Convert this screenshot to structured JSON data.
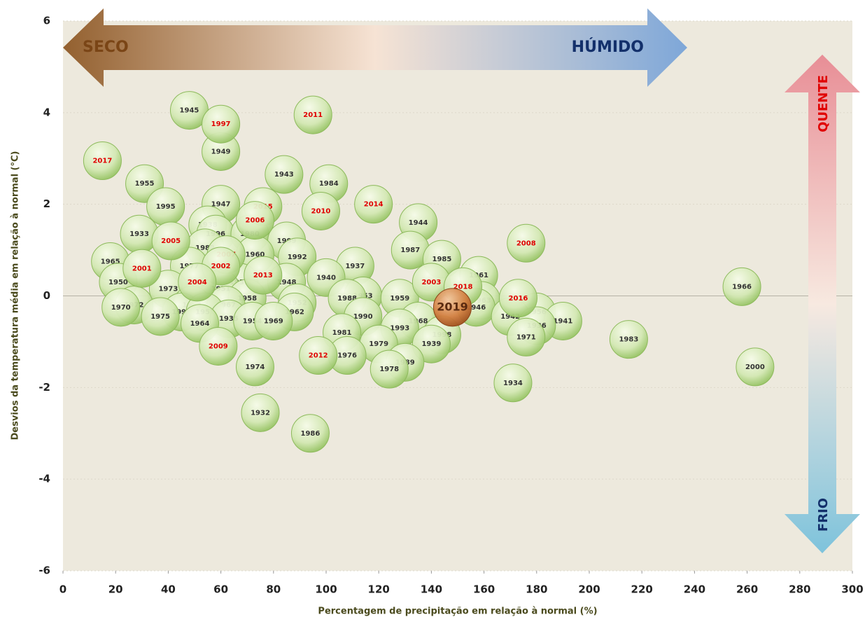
{
  "chart_data": {
    "type": "scatter",
    "x_label": "Percentagem de precipitação em relação à normal (%)",
    "y_label": "Desvios da temperatura média em relação à normal  (°C)",
    "annotations": [
      "SECO",
      "HÚMIDO",
      "QUENTE",
      "FRIO"
    ],
    "xlim": [
      0,
      300
    ],
    "xticks": [
      0,
      20,
      40,
      60,
      80,
      100,
      120,
      140,
      160,
      180,
      200,
      220,
      240,
      260,
      280,
      300
    ],
    "ylim": [
      -6,
      6
    ],
    "yticks": [
      -6,
      -4,
      -2,
      0,
      2,
      4,
      6
    ],
    "grid": true,
    "series": [
      {
        "color": "#b9d98f",
        "label_color": "#333333",
        "labels": [
          "1945",
          "1949",
          "1955",
          "1943",
          "1984",
          "1947",
          "1995",
          "1944",
          "1938",
          "1933",
          "1996",
          "1980",
          "1999",
          "1982",
          "1987",
          "1960",
          "1992",
          "1985",
          "1965",
          "1937",
          "1977",
          "1961",
          "1940",
          "1931",
          "1950",
          "1948",
          "1966",
          "1973",
          "1951",
          "1953",
          "1988",
          "1958",
          "1963",
          "1959",
          "1972",
          "1994",
          "1967",
          "1952",
          "1946",
          "1956",
          "1970",
          "1991",
          "1957",
          "1962",
          "1990",
          "1968",
          "1935",
          "1975",
          "1954",
          "1942",
          "1941",
          "1969",
          "1936",
          "1964",
          "1993",
          "1981",
          "1983",
          "1998",
          "1971",
          "1939",
          "1979",
          "1976",
          "1989",
          "1974",
          "2000",
          "1978",
          "1934",
          "1932",
          "1986"
        ],
        "x": [
          48,
          60,
          31,
          84,
          101,
          60,
          39,
          135,
          55,
          29,
          58,
          71,
          85,
          54,
          132,
          73,
          89,
          144,
          18,
          111,
          48,
          158,
          100,
          67,
          21,
          85,
          258,
          40,
          60,
          114,
          108,
          70,
          159,
          128,
          27,
          49,
          62,
          89,
          157,
          180,
          22,
          45,
          54,
          88,
          114,
          135,
          63,
          37,
          72,
          170,
          190,
          80,
          180,
          52,
          128,
          106,
          215,
          144,
          176,
          140,
          120,
          108,
          130,
          73,
          263,
          124,
          171,
          75,
          94
        ],
        "values": [
          4.05,
          3.15,
          2.45,
          2.65,
          2.45,
          2.0,
          1.95,
          1.6,
          1.55,
          1.35,
          1.35,
          1.35,
          1.2,
          1.05,
          1.0,
          0.9,
          0.85,
          0.8,
          0.75,
          0.65,
          0.65,
          0.45,
          0.4,
          0.3,
          0.3,
          0.3,
          0.2,
          0.15,
          0.15,
          0.0,
          -0.05,
          -0.05,
          -0.1,
          -0.05,
          -0.2,
          -0.2,
          -0.2,
          -0.15,
          -0.25,
          -0.35,
          -0.25,
          -0.35,
          -0.35,
          -0.35,
          -0.45,
          -0.55,
          -0.5,
          -0.45,
          -0.55,
          -0.45,
          -0.55,
          -0.55,
          -0.65,
          -0.6,
          -0.7,
          -0.8,
          -0.95,
          -0.85,
          -0.9,
          -1.05,
          -1.05,
          -1.3,
          -1.45,
          -1.55,
          -1.55,
          -1.6,
          -1.9,
          -2.55,
          -3.0
        ]
      },
      {
        "color": "#b9d98f",
        "label_color": "#e00000",
        "labels": [
          "1997",
          "2011",
          "2017",
          "2015",
          "2014",
          "2010",
          "2006",
          "2008",
          "2005",
          "2007",
          "2001",
          "2002",
          "2013",
          "2003",
          "2018",
          "2004",
          "2016",
          "2009",
          "2012"
        ],
        "x": [
          60,
          95,
          15,
          76,
          118,
          98,
          73,
          176,
          41,
          62,
          30,
          60,
          76,
          140,
          152,
          51,
          173,
          59,
          97
        ],
        "values": [
          3.75,
          3.95,
          2.95,
          1.95,
          2.0,
          1.85,
          1.65,
          1.15,
          1.2,
          0.9,
          0.6,
          0.65,
          0.45,
          0.3,
          0.2,
          0.3,
          -0.05,
          -1.1,
          -1.3
        ]
      },
      {
        "color": "#c8743a",
        "label_color": "#5a2a10",
        "labels": [
          "2019"
        ],
        "x": [
          148
        ],
        "values": [
          -0.25
        ]
      }
    ]
  }
}
